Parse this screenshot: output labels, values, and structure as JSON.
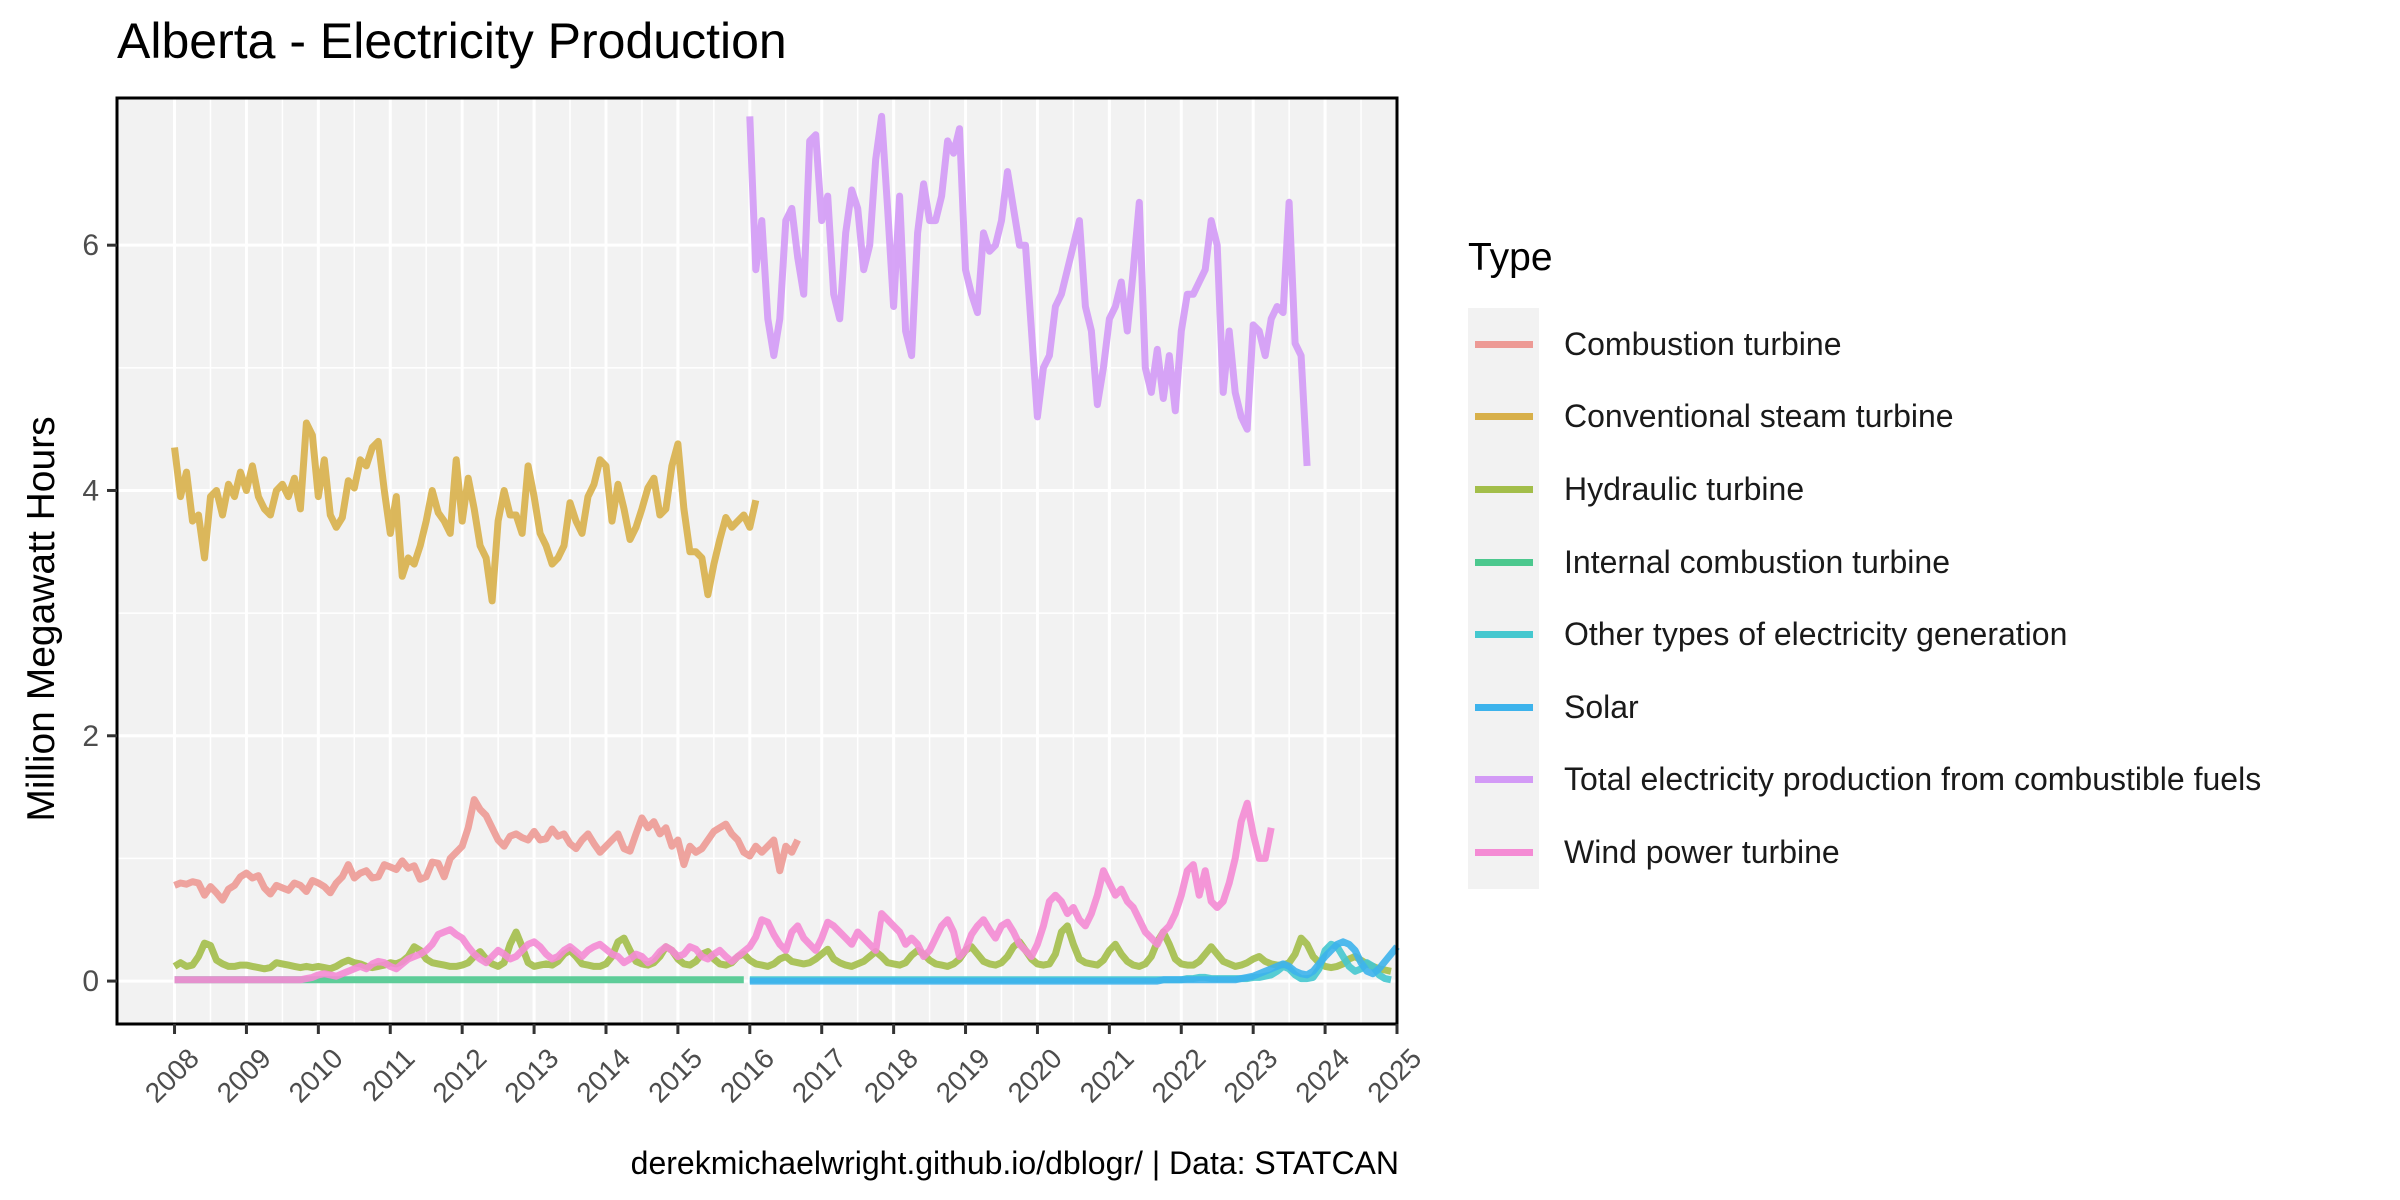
{
  "chart_data": {
    "type": "line",
    "title": "Alberta - Electricity Production",
    "ylabel": "Million Megawatt Hours",
    "xlabel": "",
    "caption": "derekmichaelwright.github.io/dblogr/ | Data: STATCAN",
    "xlim": [
      2007.2,
      2025.0
    ],
    "ylim": [
      -0.35,
      7.2
    ],
    "x_ticks": [
      "2008",
      "2009",
      "2010",
      "2011",
      "2012",
      "2013",
      "2014",
      "2015",
      "2016",
      "2017",
      "2018",
      "2019",
      "2020",
      "2021",
      "2022",
      "2023",
      "2024",
      "2025"
    ],
    "y_ticks": [
      0,
      2,
      4,
      6
    ],
    "grid": true,
    "legend_title": "Type",
    "legend_position": "right",
    "series": [
      {
        "name": "Combustion turbine",
        "color": "#ED9A95",
        "x_start": 2008.0,
        "x_step": 0.0833333333,
        "values": [
          0.78,
          0.8,
          0.79,
          0.81,
          0.8,
          0.7,
          0.77,
          0.72,
          0.66,
          0.75,
          0.78,
          0.85,
          0.88,
          0.84,
          0.86,
          0.76,
          0.71,
          0.78,
          0.76,
          0.74,
          0.8,
          0.78,
          0.73,
          0.82,
          0.8,
          0.77,
          0.72,
          0.8,
          0.85,
          0.95,
          0.84,
          0.88,
          0.9,
          0.84,
          0.85,
          0.95,
          0.93,
          0.91,
          0.98,
          0.92,
          0.94,
          0.83,
          0.85,
          0.97,
          0.96,
          0.85,
          1.0,
          1.05,
          1.1,
          1.25,
          1.48,
          1.4,
          1.35,
          1.25,
          1.15,
          1.1,
          1.18,
          1.2,
          1.17,
          1.15,
          1.22,
          1.15,
          1.16,
          1.24,
          1.18,
          1.2,
          1.12,
          1.08,
          1.15,
          1.2,
          1.12,
          1.05,
          1.1,
          1.15,
          1.2,
          1.08,
          1.06,
          1.2,
          1.33,
          1.25,
          1.3,
          1.2,
          1.25,
          1.1,
          1.15,
          0.95,
          1.1,
          1.05,
          1.08,
          1.15,
          1.22,
          1.25,
          1.28,
          1.2,
          1.15,
          1.05,
          1.02,
          1.1,
          1.05,
          1.1,
          1.15,
          0.9,
          1.1,
          1.05,
          1.15
        ]
      },
      {
        "name": "Conventional steam turbine",
        "color": "#D8B04A",
        "x_start": 2008.0,
        "x_step": 0.0833333333,
        "values": [
          4.35,
          3.95,
          4.15,
          3.75,
          3.8,
          3.45,
          3.95,
          4.0,
          3.8,
          4.05,
          3.95,
          4.15,
          4.0,
          4.2,
          3.95,
          3.85,
          3.8,
          4.0,
          4.05,
          3.95,
          4.1,
          3.85,
          4.55,
          4.45,
          3.95,
          4.25,
          3.8,
          3.7,
          3.78,
          4.08,
          4.02,
          4.25,
          4.2,
          4.35,
          4.4,
          4.0,
          3.65,
          3.95,
          3.3,
          3.45,
          3.4,
          3.55,
          3.75,
          4.0,
          3.82,
          3.75,
          3.65,
          4.25,
          3.75,
          4.1,
          3.85,
          3.55,
          3.45,
          3.1,
          3.75,
          4.0,
          3.8,
          3.8,
          3.65,
          4.2,
          3.95,
          3.65,
          3.55,
          3.4,
          3.45,
          3.55,
          3.9,
          3.75,
          3.65,
          3.95,
          4.05,
          4.25,
          4.2,
          3.75,
          4.05,
          3.85,
          3.6,
          3.7,
          3.85,
          4.02,
          4.1,
          3.8,
          3.85,
          4.2,
          4.38,
          3.85,
          3.5,
          3.5,
          3.45,
          3.15,
          3.4,
          3.6,
          3.78,
          3.7,
          3.75,
          3.8,
          3.7,
          3.92
        ]
      },
      {
        "name": "Hydraulic turbine",
        "color": "#A3BE4A",
        "x_start": 2008.0,
        "x_step": 0.0833333333,
        "values": [
          0.12,
          0.15,
          0.12,
          0.13,
          0.2,
          0.31,
          0.29,
          0.17,
          0.14,
          0.12,
          0.12,
          0.13,
          0.13,
          0.12,
          0.11,
          0.1,
          0.11,
          0.15,
          0.14,
          0.13,
          0.12,
          0.11,
          0.12,
          0.11,
          0.12,
          0.11,
          0.1,
          0.12,
          0.15,
          0.17,
          0.15,
          0.14,
          0.12,
          0.11,
          0.12,
          0.13,
          0.15,
          0.14,
          0.16,
          0.2,
          0.28,
          0.25,
          0.18,
          0.15,
          0.14,
          0.13,
          0.12,
          0.12,
          0.13,
          0.15,
          0.2,
          0.24,
          0.18,
          0.14,
          0.12,
          0.15,
          0.3,
          0.4,
          0.28,
          0.15,
          0.12,
          0.13,
          0.14,
          0.13,
          0.16,
          0.22,
          0.25,
          0.2,
          0.14,
          0.13,
          0.12,
          0.12,
          0.14,
          0.2,
          0.32,
          0.35,
          0.25,
          0.16,
          0.14,
          0.13,
          0.15,
          0.2,
          0.28,
          0.25,
          0.18,
          0.14,
          0.13,
          0.16,
          0.22,
          0.24,
          0.18,
          0.14,
          0.13,
          0.15,
          0.2,
          0.22,
          0.17,
          0.14,
          0.13,
          0.12,
          0.14,
          0.18,
          0.2,
          0.16,
          0.15,
          0.14,
          0.15,
          0.18,
          0.22,
          0.26,
          0.18,
          0.15,
          0.13,
          0.12,
          0.14,
          0.16,
          0.2,
          0.24,
          0.2,
          0.15,
          0.14,
          0.13,
          0.15,
          0.21,
          0.25,
          0.22,
          0.17,
          0.14,
          0.13,
          0.12,
          0.14,
          0.18,
          0.25,
          0.28,
          0.22,
          0.16,
          0.14,
          0.13,
          0.15,
          0.2,
          0.28,
          0.32,
          0.25,
          0.18,
          0.14,
          0.13,
          0.14,
          0.22,
          0.4,
          0.45,
          0.3,
          0.18,
          0.15,
          0.14,
          0.13,
          0.17,
          0.25,
          0.3,
          0.22,
          0.16,
          0.13,
          0.12,
          0.14,
          0.2,
          0.32,
          0.4,
          0.3,
          0.18,
          0.14,
          0.13,
          0.13,
          0.16,
          0.22,
          0.28,
          0.22,
          0.16,
          0.14,
          0.12,
          0.13,
          0.15,
          0.18,
          0.2,
          0.16,
          0.14,
          0.13,
          0.13,
          0.15,
          0.22,
          0.35,
          0.3,
          0.2,
          0.15,
          0.12,
          0.11,
          0.12,
          0.14,
          0.18,
          0.2,
          0.17,
          0.14,
          0.12,
          0.1,
          0.09,
          0.08
        ]
      },
      {
        "name": "Internal combustion turbine",
        "color": "#4CC88E",
        "x_start": 2008.0,
        "x_step": 0.0833333333,
        "values": [
          0.01,
          0.01,
          0.01,
          0.01,
          0.01,
          0.01,
          0.01,
          0.01,
          0.01,
          0.01,
          0.01,
          0.01,
          0.01,
          0.01,
          0.01,
          0.01,
          0.01,
          0.01,
          0.01,
          0.01,
          0.01,
          0.01,
          0.01,
          0.01,
          0.01,
          0.01,
          0.01,
          0.01,
          0.01,
          0.01,
          0.01,
          0.01,
          0.01,
          0.01,
          0.01,
          0.01,
          0.01,
          0.01,
          0.01,
          0.01,
          0.01,
          0.01,
          0.01,
          0.01,
          0.01,
          0.01,
          0.01,
          0.01,
          0.01,
          0.01,
          0.01,
          0.01,
          0.01,
          0.01,
          0.01,
          0.01,
          0.01,
          0.01,
          0.01,
          0.01,
          0.01,
          0.01,
          0.01,
          0.01,
          0.01,
          0.01,
          0.01,
          0.01,
          0.01,
          0.01,
          0.01,
          0.01,
          0.01,
          0.01,
          0.01,
          0.01,
          0.01,
          0.01,
          0.01,
          0.01,
          0.01,
          0.01,
          0.01,
          0.01,
          0.01,
          0.01,
          0.01,
          0.01,
          0.01,
          0.01,
          0.01,
          0.01,
          0.01,
          0.01,
          0.01,
          0.01
        ]
      },
      {
        "name": "Other types of electricity generation",
        "color": "#45C8CF",
        "x_start": 2016.0,
        "x_step": 0.0833333333,
        "values": [
          0.01,
          0.01,
          0.01,
          0.01,
          0.01,
          0.01,
          0.01,
          0.01,
          0.01,
          0.01,
          0.01,
          0.01,
          0.01,
          0.01,
          0.01,
          0.01,
          0.01,
          0.01,
          0.01,
          0.01,
          0.01,
          0.01,
          0.01,
          0.01,
          0.01,
          0.01,
          0.01,
          0.01,
          0.01,
          0.01,
          0.01,
          0.01,
          0.01,
          0.01,
          0.01,
          0.01,
          0.01,
          0.01,
          0.01,
          0.01,
          0.01,
          0.01,
          0.01,
          0.01,
          0.01,
          0.01,
          0.01,
          0.01,
          0.01,
          0.01,
          0.01,
          0.01,
          0.01,
          0.01,
          0.01,
          0.01,
          0.01,
          0.01,
          0.01,
          0.01,
          0.01,
          0.01,
          0.01,
          0.01,
          0.01,
          0.01,
          0.01,
          0.01,
          0.01,
          0.01,
          0.01,
          0.01,
          0.01,
          0.02,
          0.02,
          0.03,
          0.03,
          0.02,
          0.02,
          0.02,
          0.02,
          0.02,
          0.02,
          0.02,
          0.03,
          0.03,
          0.04,
          0.05,
          0.08,
          0.12,
          0.1,
          0.05,
          0.02,
          0.02,
          0.03,
          0.1,
          0.25,
          0.3,
          0.28,
          0.2,
          0.12,
          0.08,
          0.1,
          0.15,
          0.12,
          0.05,
          0.02,
          0.01
        ]
      },
      {
        "name": "Solar",
        "color": "#3DB3EC",
        "x_start": 2016.0,
        "x_step": 0.0833333333,
        "values": [
          0.0,
          0.0,
          0.0,
          0.0,
          0.0,
          0.0,
          0.0,
          0.0,
          0.0,
          0.0,
          0.0,
          0.0,
          0.0,
          0.0,
          0.0,
          0.0,
          0.0,
          0.0,
          0.0,
          0.0,
          0.0,
          0.0,
          0.0,
          0.0,
          0.0,
          0.0,
          0.0,
          0.0,
          0.0,
          0.0,
          0.0,
          0.0,
          0.0,
          0.0,
          0.0,
          0.0,
          0.0,
          0.0,
          0.0,
          0.0,
          0.0,
          0.0,
          0.0,
          0.0,
          0.0,
          0.0,
          0.0,
          0.0,
          0.0,
          0.0,
          0.0,
          0.0,
          0.0,
          0.0,
          0.0,
          0.0,
          0.0,
          0.0,
          0.0,
          0.0,
          0.0,
          0.0,
          0.0,
          0.0,
          0.0,
          0.0,
          0.0,
          0.0,
          0.0,
          0.01,
          0.01,
          0.01,
          0.01,
          0.01,
          0.01,
          0.01,
          0.01,
          0.01,
          0.01,
          0.01,
          0.01,
          0.01,
          0.02,
          0.03,
          0.04,
          0.06,
          0.08,
          0.1,
          0.12,
          0.14,
          0.12,
          0.08,
          0.06,
          0.05,
          0.08,
          0.14,
          0.2,
          0.25,
          0.3,
          0.32,
          0.3,
          0.25,
          0.15,
          0.08,
          0.06,
          0.1,
          0.16,
          0.22,
          0.28
        ]
      },
      {
        "name": "Total electricity production from combustible fuels",
        "color": "#D39AF6",
        "x_start": 2016.0,
        "x_step": 0.0833333333,
        "values": [
          7.05,
          5.8,
          6.2,
          5.4,
          5.1,
          5.4,
          6.2,
          6.3,
          5.9,
          5.6,
          6.85,
          6.9,
          6.2,
          6.4,
          5.6,
          5.4,
          6.1,
          6.45,
          6.3,
          5.8,
          6.0,
          6.7,
          7.05,
          6.3,
          5.5,
          6.4,
          5.3,
          5.1,
          6.1,
          6.5,
          6.2,
          6.2,
          6.4,
          6.85,
          6.75,
          6.95,
          5.8,
          5.6,
          5.45,
          6.1,
          5.95,
          6.0,
          6.2,
          6.6,
          6.3,
          6.0,
          6.0,
          5.3,
          4.6,
          5.0,
          5.1,
          5.5,
          5.6,
          5.8,
          6.0,
          6.2,
          5.5,
          5.3,
          4.7,
          5.0,
          5.4,
          5.5,
          5.7,
          5.3,
          5.8,
          6.35,
          5.0,
          4.8,
          5.15,
          4.75,
          5.1,
          4.65,
          5.3,
          5.6,
          5.6,
          5.7,
          5.8,
          6.2,
          6.0,
          4.8,
          5.3,
          4.8,
          4.6,
          4.5,
          5.35,
          5.3,
          5.1,
          5.4,
          5.5,
          5.45,
          6.35,
          5.2,
          5.1,
          4.2
        ]
      },
      {
        "name": "Wind power turbine",
        "color": "#F48BD4",
        "x_start": 2008.0,
        "x_step": 0.0833333333,
        "values": [
          0.01,
          0.01,
          0.01,
          0.01,
          0.01,
          0.01,
          0.01,
          0.01,
          0.01,
          0.01,
          0.01,
          0.01,
          0.01,
          0.01,
          0.01,
          0.01,
          0.01,
          0.01,
          0.01,
          0.01,
          0.01,
          0.01,
          0.02,
          0.03,
          0.05,
          0.06,
          0.05,
          0.04,
          0.06,
          0.08,
          0.1,
          0.12,
          0.1,
          0.14,
          0.16,
          0.15,
          0.12,
          0.1,
          0.14,
          0.18,
          0.2,
          0.22,
          0.25,
          0.3,
          0.38,
          0.4,
          0.42,
          0.38,
          0.35,
          0.28,
          0.22,
          0.18,
          0.15,
          0.2,
          0.25,
          0.22,
          0.18,
          0.2,
          0.25,
          0.3,
          0.32,
          0.28,
          0.22,
          0.18,
          0.2,
          0.25,
          0.28,
          0.24,
          0.2,
          0.25,
          0.28,
          0.3,
          0.26,
          0.22,
          0.2,
          0.15,
          0.18,
          0.22,
          0.2,
          0.15,
          0.18,
          0.24,
          0.28,
          0.25,
          0.2,
          0.22,
          0.28,
          0.26,
          0.2,
          0.18,
          0.22,
          0.25,
          0.2,
          0.16,
          0.2,
          0.24,
          0.28,
          0.36,
          0.5,
          0.48,
          0.38,
          0.3,
          0.25,
          0.4,
          0.45,
          0.35,
          0.3,
          0.25,
          0.35,
          0.48,
          0.45,
          0.4,
          0.35,
          0.3,
          0.4,
          0.35,
          0.3,
          0.25,
          0.55,
          0.5,
          0.45,
          0.4,
          0.3,
          0.35,
          0.3,
          0.2,
          0.25,
          0.35,
          0.45,
          0.5,
          0.4,
          0.2,
          0.25,
          0.38,
          0.45,
          0.5,
          0.42,
          0.35,
          0.45,
          0.48,
          0.4,
          0.3,
          0.25,
          0.2,
          0.3,
          0.45,
          0.65,
          0.7,
          0.65,
          0.55,
          0.6,
          0.5,
          0.45,
          0.55,
          0.7,
          0.9,
          0.8,
          0.7,
          0.75,
          0.65,
          0.6,
          0.5,
          0.4,
          0.35,
          0.3,
          0.4,
          0.45,
          0.55,
          0.7,
          0.9,
          0.95,
          0.7,
          0.9,
          0.65,
          0.6,
          0.65,
          0.8,
          1.0,
          1.3,
          1.45,
          1.2,
          1.0,
          1.0,
          1.25
        ]
      }
    ]
  }
}
